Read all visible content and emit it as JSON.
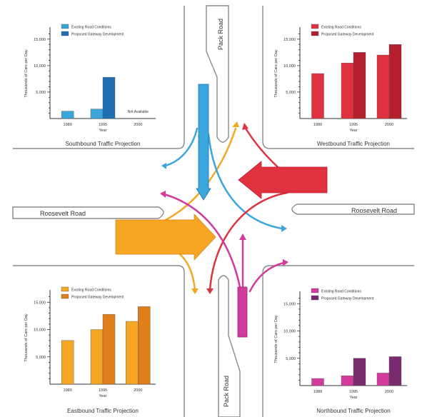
{
  "roads": {
    "pack_road_top": "Pack Road",
    "pack_road_bottom": "Pack Road",
    "roosevelt_road_left": "Roosevelt Road",
    "roosevelt_road_right": "Roosevelt Road"
  },
  "colors": {
    "southbound": "#3aa6dc",
    "southbound_dark": "#1e6fb3",
    "westbound": "#e0313f",
    "westbound_dark": "#b5202e",
    "eastbound": "#f5a623",
    "eastbound_dark": "#e07f1a",
    "northbound": "#d23a9b",
    "northbound_dark": "#7a2a6e",
    "road_line": "#8a8a8a"
  },
  "chart_data": [
    {
      "type": "bar",
      "title": "Southbound Traffic Projection",
      "xlabel": "Year",
      "ylabel": "Thousands of Cars per Day",
      "ylim": [
        0,
        17000
      ],
      "yticks": [
        "5,000",
        "10,000",
        "15,000"
      ],
      "categories": [
        "1989",
        "1995",
        "2000"
      ],
      "series": [
        {
          "name": "Existing Road Conditions",
          "values": [
            1400,
            1800,
            null
          ]
        },
        {
          "name": "Proposed Gateway Development",
          "values": [
            null,
            7800,
            null
          ]
        }
      ],
      "annotations": [
        "Not Available"
      ]
    },
    {
      "type": "bar",
      "title": "Westbound Traffic Projection",
      "xlabel": "Year",
      "ylabel": "Thousands of Cars per Day",
      "ylim": [
        0,
        17000
      ],
      "yticks": [
        "5,000",
        "10,000",
        "15,000"
      ],
      "categories": [
        "1989",
        "1995",
        "2000"
      ],
      "series": [
        {
          "name": "Existing Road Conditions",
          "values": [
            8500,
            10500,
            12000
          ]
        },
        {
          "name": "Proposed Gateway Development",
          "values": [
            null,
            12500,
            14000
          ]
        }
      ]
    },
    {
      "type": "bar",
      "title": "Eastbound Traffic Projection",
      "xlabel": "Year",
      "ylabel": "Thousands of Cars per Day",
      "ylim": [
        0,
        17000
      ],
      "yticks": [
        "5,000",
        "10,000",
        "15,000"
      ],
      "categories": [
        "1989",
        "1995",
        "2000"
      ],
      "series": [
        {
          "name": "Existing Road Conditions",
          "values": [
            8000,
            10000,
            11500
          ]
        },
        {
          "name": "Proposed Gateway Development",
          "values": [
            null,
            12800,
            14200
          ]
        }
      ]
    },
    {
      "type": "bar",
      "title": "Northbound Traffic Projection",
      "xlabel": "Year",
      "ylabel": "Thousands of Cars per Day",
      "ylim": [
        0,
        17000
      ],
      "yticks": [
        "5,000",
        "10,000",
        "15,000"
      ],
      "categories": [
        "1989",
        "1995",
        "2000"
      ],
      "series": [
        {
          "name": "Existing Road Conditions",
          "values": [
            1300,
            1800,
            2300
          ]
        },
        {
          "name": "Proposed Gateway Development",
          "values": [
            null,
            5000,
            5300
          ]
        }
      ]
    }
  ]
}
